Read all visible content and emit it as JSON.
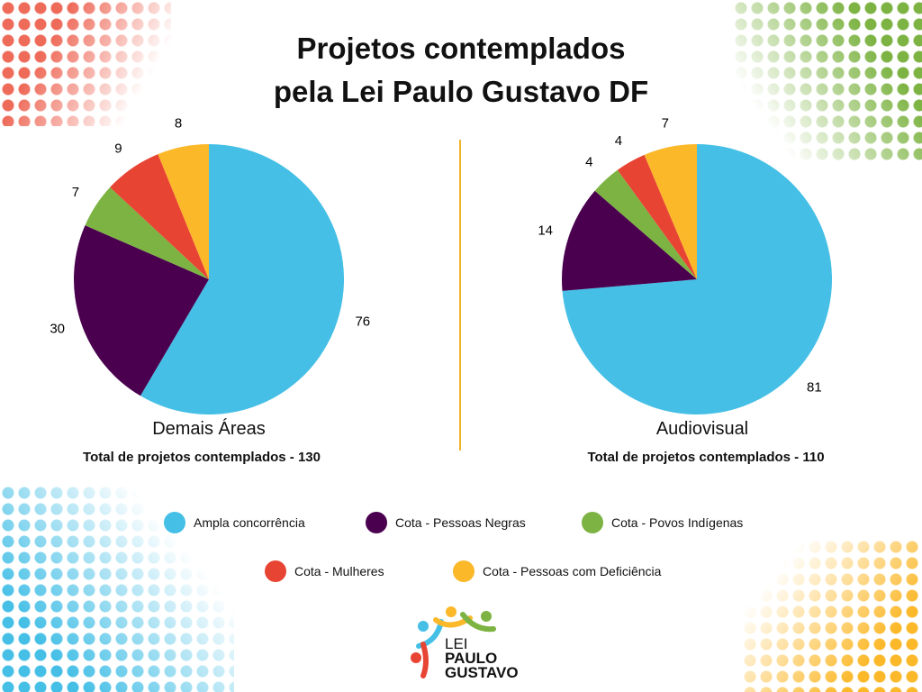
{
  "title_line1": "Projetos contemplados",
  "title_line2": "pela Lei Paulo Gustavo DF",
  "colors": {
    "ampla": "#45bfe6",
    "negras": "#4a004f",
    "indigenas": "#7cb342",
    "mulheres": "#e84434",
    "deficiencia": "#fbb829"
  },
  "chart_data": [
    {
      "type": "pie",
      "title": "Demais Áreas",
      "subtitle": "Total de projetos contemplados - 130",
      "categories": [
        "Ampla concorrência",
        "Cota - Pessoas Negras",
        "Cota - Povos Indígenas",
        "Cota - Mulheres",
        "Cota - Pessoas com Deficiência"
      ],
      "values": [
        76,
        30,
        7,
        9,
        8
      ]
    },
    {
      "type": "pie",
      "title": "Audiovisual",
      "subtitle": "Total de projetos contemplados - 110",
      "categories": [
        "Ampla concorrência",
        "Cota - Pessoas Negras",
        "Cota - Povos Indígenas",
        "Cota - Mulheres",
        "Cota - Pessoas com Deficiência"
      ],
      "values": [
        81,
        14,
        4,
        4,
        7
      ]
    }
  ],
  "legend": [
    "Ampla concorrência",
    "Cota - Pessoas Negras",
    "Cota - Povos Indígenas",
    "Cota - Mulheres",
    "Cota - Pessoas com Deficiência"
  ],
  "logo": {
    "line1": "LEI",
    "line2": "PAULO",
    "line3": "GUSTAVO"
  }
}
